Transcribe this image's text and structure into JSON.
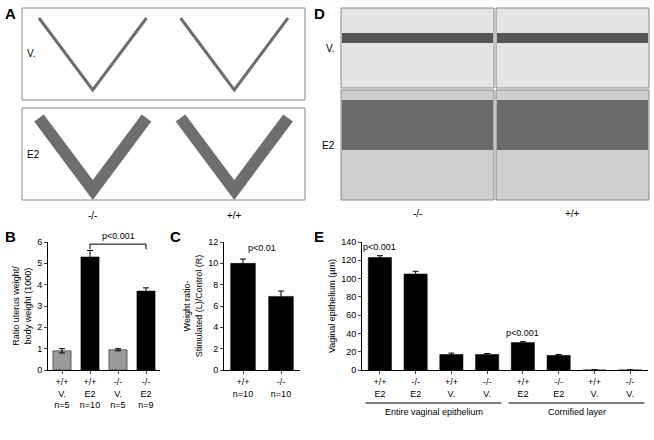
{
  "chart_data": [
    {
      "panel": "B",
      "type": "bar",
      "categories": [
        "+/+\nV.\nn=5",
        "+/+\nE2\nn=10",
        "-/-\nV.\nn=5",
        "-/-\nE2\nn=9"
      ],
      "values": [
        0.9,
        5.3,
        0.95,
        3.7
      ],
      "errors": [
        0.1,
        0.3,
        0.05,
        0.15
      ],
      "colors": [
        "#9a9a9a",
        "#000000",
        "#9a9a9a",
        "#000000"
      ],
      "y_label": "Ratio uterus weight/\nbody weight (1000)",
      "ylim": [
        0,
        6
      ],
      "yticks": [
        0,
        1,
        2,
        3,
        4,
        5,
        6
      ],
      "annotations": [
        {
          "text": "p<0.001",
          "from": 1,
          "to": 3
        }
      ]
    },
    {
      "panel": "C",
      "type": "bar",
      "categories": [
        "+/+\nn=10",
        "-/-\nn=10"
      ],
      "values": [
        10,
        6.9
      ],
      "errors": [
        0.4,
        0.5
      ],
      "color": "#000000",
      "y_label": "Weight ratio-\nStimulated (L)/Control (R)",
      "ylim": [
        0,
        12
      ],
      "yticks": [
        0,
        2,
        4,
        6,
        8,
        10,
        12
      ],
      "annotations": [
        {
          "text": "p<0.01"
        }
      ]
    },
    {
      "panel": "E",
      "type": "bar",
      "categories": [
        "+/+\nE2",
        "-/-\nE2",
        "+/+\nV.",
        "-/-\nV.",
        "+/+\nE2",
        "-/-\nE2",
        "+/+\nV.",
        "-/-\nV."
      ],
      "values": [
        123,
        105,
        17,
        17,
        30,
        16,
        0,
        0
      ],
      "errors": [
        2,
        3,
        1.5,
        1,
        1,
        1,
        0,
        0
      ],
      "color": "#000000",
      "y_label": "Vaginal epithelium (µm)",
      "ylim": [
        0,
        140
      ],
      "yticks": [
        0,
        20,
        40,
        60,
        80,
        100,
        120,
        140
      ],
      "groups": [
        {
          "label": "Entire vaginal epithelium",
          "start": 0,
          "end": 3
        },
        {
          "label": "Cornified layer",
          "start": 4,
          "end": 7
        }
      ],
      "annotations": [
        {
          "text": "p<0.001",
          "at": 0
        },
        {
          "text": "p<0.001",
          "at": 4
        }
      ]
    }
  ],
  "photo_panels": [
    {
      "panel": "A",
      "rows": [
        "V.",
        "E2"
      ],
      "columns": [
        "-/-",
        "+/+"
      ]
    },
    {
      "panel": "D",
      "rows": [
        "V.",
        "E2"
      ],
      "columns": [
        "-/-",
        "+/+"
      ]
    }
  ]
}
